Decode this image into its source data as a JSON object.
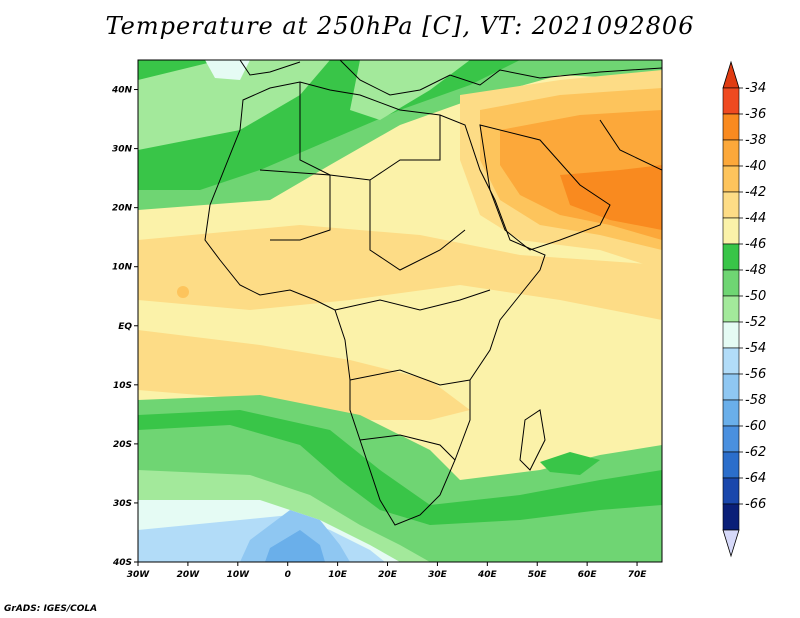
{
  "title": "Temperature at 250hPa [C], VT: 2021092806",
  "footer": "GrADS: IGES/COLA",
  "map": {
    "projection": "lat-lon",
    "lon_range": [
      -30,
      75
    ],
    "lat_range": [
      -40,
      45
    ],
    "x_ticks": [
      "30W",
      "20W",
      "10W",
      "0",
      "10E",
      "20E",
      "30E",
      "40E",
      "50E",
      "60E",
      "70E"
    ],
    "y_ticks": [
      "40S",
      "30S",
      "20S",
      "10S",
      "EQ",
      "10N",
      "20N",
      "30N",
      "40N"
    ]
  },
  "colorbar": {
    "levels": [
      "-34",
      "-36",
      "-38",
      "-40",
      "-42",
      "-44",
      "-46",
      "-48",
      "-50",
      "-52",
      "-54",
      "-56",
      "-58",
      "-60",
      "-62",
      "-64",
      "-66"
    ],
    "colors": [
      "#ef4a20",
      "#f98a1f",
      "#fca83a",
      "#fdc45c",
      "#fddc86",
      "#fbf2a9",
      "#39c548",
      "#6fd573",
      "#a3e99b",
      "#e5fbf4",
      "#b2dcf8",
      "#8fc7f2",
      "#6aafea",
      "#4a90df",
      "#2b6ecb",
      "#1a47ac",
      "#0a1f78"
    ],
    "top_color": "#e03c12",
    "bottom_color": "#d6d9f9"
  }
}
